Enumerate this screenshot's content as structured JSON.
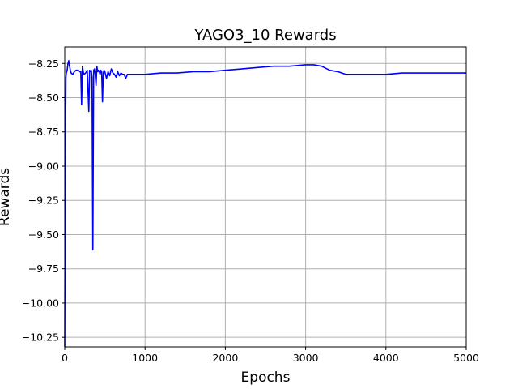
{
  "chart_data": {
    "type": "line",
    "title": "YAGO3_10 Rewards",
    "xlabel": "Epochs",
    "ylabel": "Rewards",
    "xlim": [
      0,
      5000
    ],
    "ylim": [
      -10.32,
      -8.13
    ],
    "xticks": [
      0,
      1000,
      2000,
      3000,
      4000,
      5000
    ],
    "xtick_labels": [
      "0",
      "1000",
      "2000",
      "3000",
      "4000",
      "5000"
    ],
    "yticks": [
      -10.25,
      -10.0,
      -9.75,
      -9.5,
      -9.25,
      -9.0,
      -8.75,
      -8.5,
      -8.25
    ],
    "ytick_labels": [
      "−10.25",
      "−10.00",
      "−9.75",
      "−9.50",
      "−9.25",
      "−9.00",
      "−8.75",
      "−8.50",
      "−8.25"
    ],
    "grid": true,
    "series": [
      {
        "color": "#0000ff",
        "x": [
          0,
          5,
          10,
          15,
          20,
          30,
          40,
          50,
          60,
          70,
          80,
          100,
          120,
          140,
          160,
          180,
          200,
          210,
          220,
          230,
          240,
          260,
          280,
          300,
          310,
          320,
          330,
          340,
          350,
          360,
          370,
          380,
          390,
          400,
          410,
          420,
          430,
          440,
          450,
          460,
          470,
          480,
          490,
          500,
          520,
          540,
          560,
          580,
          600,
          620,
          640,
          660,
          680,
          700,
          720,
          740,
          760,
          780,
          800,
          900,
          1000,
          1200,
          1400,
          1600,
          1800,
          2000,
          2200,
          2400,
          2600,
          2800,
          3000,
          3100,
          3200,
          3300,
          3400,
          3500,
          3600,
          3700,
          3800,
          3900,
          4000,
          4200,
          4400,
          4600,
          4800,
          5000
        ],
        "y": [
          -10.32,
          -9.3,
          -8.75,
          -8.35,
          -8.32,
          -8.3,
          -8.25,
          -8.23,
          -8.27,
          -8.3,
          -8.32,
          -8.33,
          -8.31,
          -8.3,
          -8.3,
          -8.31,
          -8.31,
          -8.55,
          -8.27,
          -8.31,
          -8.33,
          -8.32,
          -8.3,
          -8.6,
          -8.3,
          -8.31,
          -8.3,
          -8.35,
          -9.61,
          -8.3,
          -8.29,
          -8.33,
          -8.41,
          -8.27,
          -8.31,
          -8.3,
          -8.31,
          -8.33,
          -8.3,
          -8.31,
          -8.53,
          -8.32,
          -8.3,
          -8.31,
          -8.36,
          -8.31,
          -8.34,
          -8.29,
          -8.32,
          -8.33,
          -8.35,
          -8.31,
          -8.34,
          -8.32,
          -8.33,
          -8.33,
          -8.36,
          -8.33,
          -8.33,
          -8.33,
          -8.33,
          -8.32,
          -8.32,
          -8.31,
          -8.31,
          -8.3,
          -8.29,
          -8.28,
          -8.27,
          -8.27,
          -8.26,
          -8.26,
          -8.27,
          -8.3,
          -8.31,
          -8.33,
          -8.33,
          -8.33,
          -8.33,
          -8.33,
          -8.33,
          -8.32,
          -8.32,
          -8.32,
          -8.32,
          -8.32
        ]
      }
    ]
  }
}
